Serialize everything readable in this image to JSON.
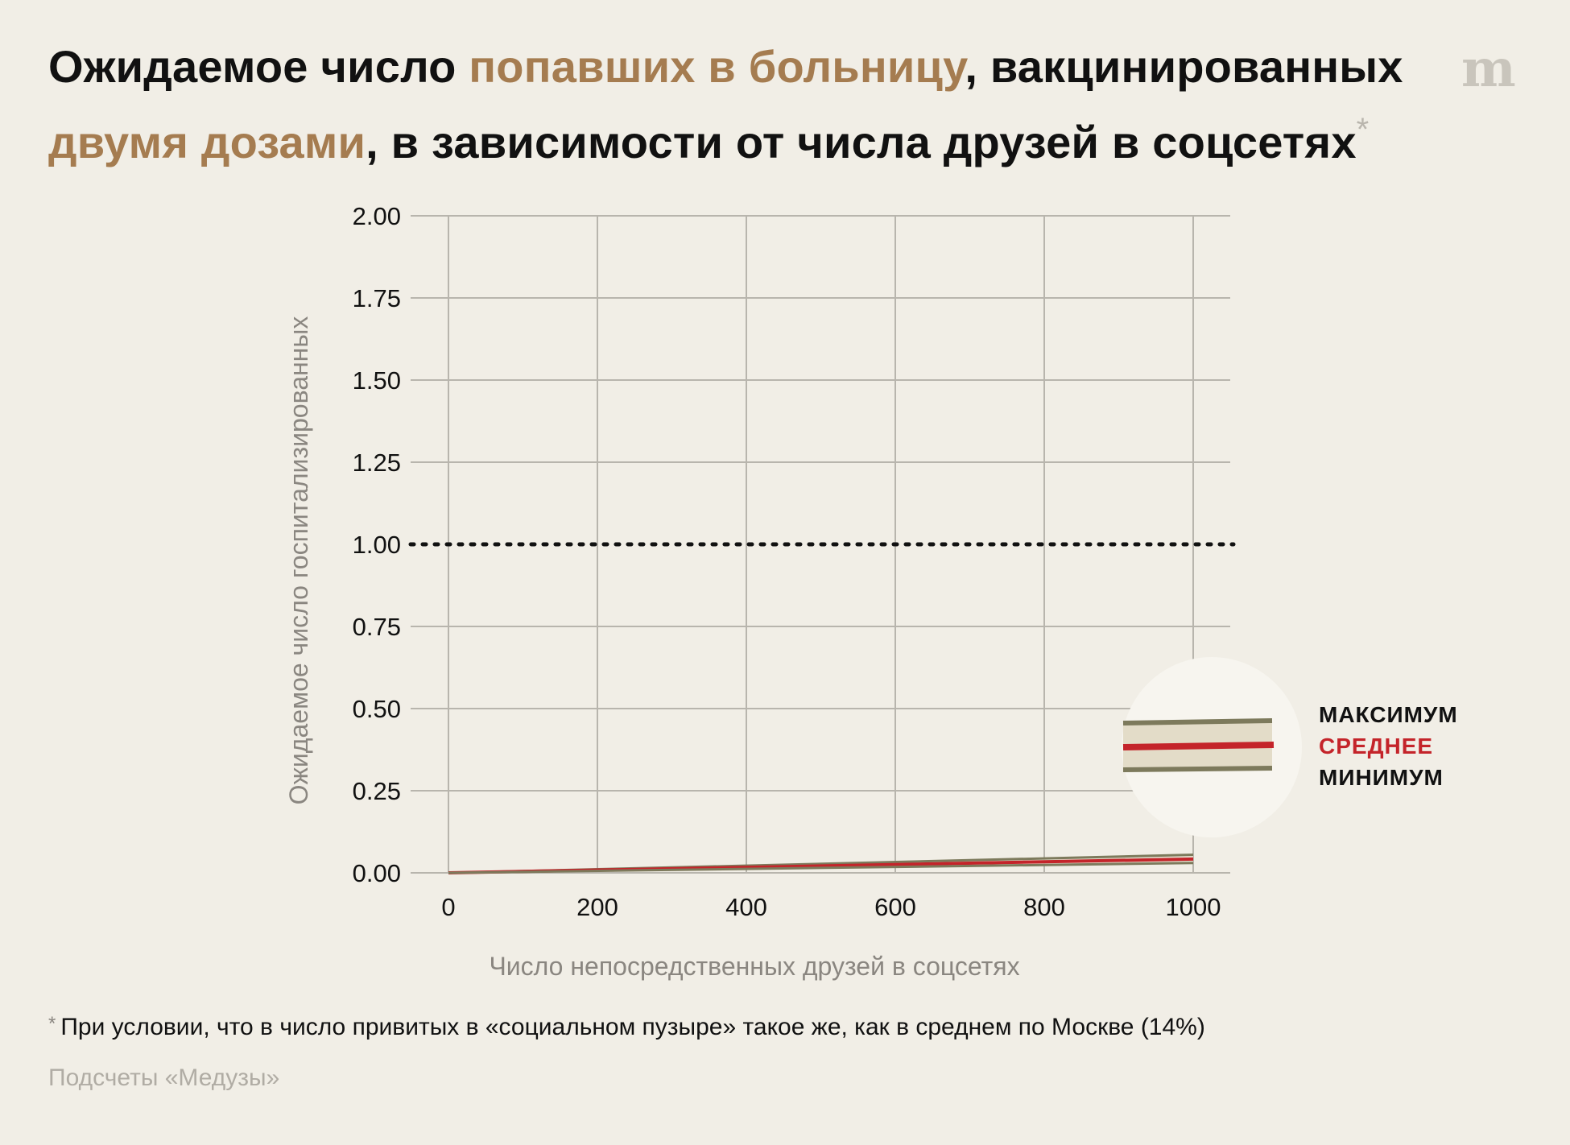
{
  "header": {
    "title_part1": "Ожидаемое число ",
    "title_hl1": "попавших в больницу",
    "title_part2": ", вакцинированных ",
    "title_hl2": "двумя дозами",
    "title_part3": ", в зависимости от числа друзей в соцсетях",
    "title_star": "*",
    "logo": "m"
  },
  "colors": {
    "highlight": "#a57c50",
    "band": "#7d7a5c",
    "mean": "#c4242a",
    "grid": "#b8b5ad"
  },
  "chart_data": {
    "type": "line",
    "xlabel": "Число непосредственных друзей в соцсетях",
    "ylabel": "Ожидаемое число госпитализированных",
    "xlim": [
      0,
      1000
    ],
    "ylim": [
      0,
      2
    ],
    "x_ticks": [
      0,
      200,
      400,
      600,
      800,
      1000
    ],
    "x_tick_labels": [
      "0",
      "200",
      "400",
      "600",
      "800",
      "1000"
    ],
    "y_ticks": [
      0,
      0.25,
      0.5,
      0.75,
      1.0,
      1.25,
      1.5,
      1.75,
      2.0
    ],
    "y_tick_labels": [
      "0.00",
      "0.25",
      "0.50",
      "0.75",
      "1.00",
      "1.25",
      "1.50",
      "1.75",
      "2.00"
    ],
    "reference_line": {
      "y": 1.0,
      "style": "dotted"
    },
    "grid": true,
    "series": [
      {
        "name": "МАКСИМУМ",
        "x": [
          0,
          1000
        ],
        "values": [
          0,
          0.055
        ]
      },
      {
        "name": "СРЕДНЕЕ",
        "x": [
          0,
          1000
        ],
        "values": [
          0,
          0.042
        ]
      },
      {
        "name": "МИНИМУМ",
        "x": [
          0,
          1000
        ],
        "values": [
          0,
          0.03
        ]
      }
    ],
    "legend": {
      "position": "right",
      "items": [
        "МАКСИМУМ",
        "СРЕДНЕЕ",
        "МИНИМУМ"
      ]
    }
  },
  "footnote": {
    "star": "*",
    "text": "При условии, что в число привитых в «социальном пузыре» такое же, как в среднем по Москве (14%)"
  },
  "source": "Подсчеты «Медузы»"
}
